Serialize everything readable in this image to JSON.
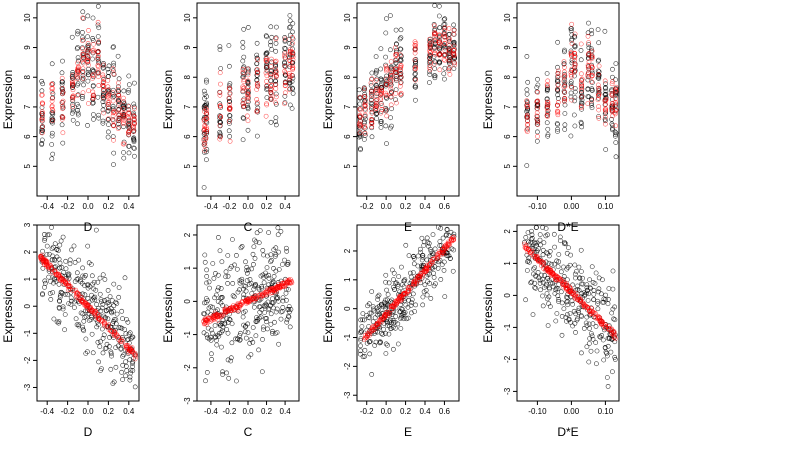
{
  "colors": {
    "observed": "#000000",
    "fitted": "#ff0000",
    "frame": "#000000"
  },
  "chart_data": [
    {
      "type": "scatter",
      "row": "top",
      "xlabel": "D",
      "ylabel": "Expression",
      "xlim": [
        -0.5,
        0.5
      ],
      "ylim": [
        4,
        10.5
      ],
      "xticks": [
        -0.4,
        -0.2,
        0.0,
        0.2,
        0.4
      ],
      "xtick_labels": [
        "-0.4",
        "-0.2",
        "0.0",
        "0.2",
        "0.4"
      ],
      "yticks": [
        5,
        6,
        7,
        8,
        9,
        10
      ],
      "ytick_labels": [
        "5",
        "6",
        "7",
        "8",
        "9",
        "10"
      ],
      "series": [
        {
          "role": "observed",
          "color": "#000000",
          "x_groups": [
            -0.45,
            -0.35,
            -0.25,
            -0.15,
            -0.1,
            -0.05,
            0.0,
            0.05,
            0.1,
            0.15,
            0.2,
            0.25,
            0.3,
            0.35,
            0.4,
            0.45
          ],
          "centers": [
            6.9,
            7.0,
            7.2,
            7.5,
            8.0,
            8.3,
            8.5,
            8.2,
            8.6,
            7.5,
            7.2,
            7.0,
            6.8,
            6.6,
            6.5,
            6.4
          ],
          "spread": [
            1.4,
            1.4,
            1.5,
            1.6,
            1.8,
            1.9,
            1.9,
            1.8,
            1.8,
            1.6,
            1.5,
            1.5,
            1.4,
            1.3,
            1.3,
            1.3
          ]
        },
        {
          "role": "fitted",
          "color": "#ff0000",
          "x_groups": [
            -0.45,
            -0.35,
            -0.25,
            -0.15,
            -0.1,
            -0.05,
            0.0,
            0.05,
            0.1,
            0.15,
            0.2,
            0.25,
            0.3,
            0.35,
            0.4,
            0.45
          ],
          "centers": [
            6.9,
            7.0,
            7.2,
            7.5,
            8.1,
            8.4,
            8.6,
            8.3,
            8.8,
            7.6,
            7.2,
            7.0,
            6.8,
            6.6,
            6.5,
            6.4
          ],
          "spread": [
            0.9,
            0.9,
            1.0,
            1.1,
            1.3,
            1.4,
            1.4,
            1.3,
            1.3,
            1.1,
            1.0,
            1.0,
            0.9,
            0.8,
            0.8,
            0.8
          ]
        }
      ]
    },
    {
      "type": "scatter",
      "row": "top",
      "xlabel": "C",
      "ylabel": "Expression",
      "xlim": [
        -0.55,
        0.55
      ],
      "ylim": [
        4,
        10.5
      ],
      "xticks": [
        -0.4,
        -0.2,
        0.0,
        0.2,
        0.4
      ],
      "xtick_labels": [
        "-0.4",
        "-0.2",
        "0.0",
        "0.2",
        "0.4"
      ],
      "yticks": [
        5,
        6,
        7,
        8,
        9,
        10
      ],
      "ytick_labels": [
        "5",
        "6",
        "7",
        "8",
        "9",
        "10"
      ],
      "series": [
        {
          "role": "observed",
          "color": "#000000",
          "x_groups": [
            -0.47,
            -0.45,
            -0.3,
            -0.2,
            -0.05,
            0.0,
            0.1,
            0.2,
            0.25,
            0.3,
            0.4,
            0.45,
            0.48
          ],
          "centers": [
            6.4,
            6.8,
            7.0,
            7.4,
            7.8,
            7.6,
            7.9,
            8.1,
            8.2,
            8.0,
            8.5,
            8.6,
            8.7
          ],
          "spread": [
            1.6,
            1.7,
            1.5,
            1.4,
            1.5,
            1.4,
            1.4,
            1.5,
            1.4,
            1.5,
            1.7,
            1.8,
            1.7
          ]
        },
        {
          "role": "fitted",
          "color": "#ff0000",
          "x_groups": [
            -0.47,
            -0.45,
            -0.3,
            -0.2,
            -0.05,
            0.0,
            0.1,
            0.2,
            0.25,
            0.3,
            0.4,
            0.45,
            0.48
          ],
          "centers": [
            6.2,
            6.6,
            7.0,
            7.3,
            7.6,
            7.5,
            7.8,
            8.0,
            8.1,
            8.0,
            8.4,
            8.5,
            8.6
          ],
          "spread": [
            0.8,
            0.9,
            1.0,
            1.0,
            1.0,
            1.0,
            1.0,
            1.0,
            1.0,
            1.0,
            1.2,
            1.3,
            1.2
          ]
        }
      ]
    },
    {
      "type": "scatter",
      "row": "top",
      "xlabel": "E",
      "ylabel": "Expression",
      "xlim": [
        -0.3,
        0.75
      ],
      "ylim": [
        4,
        10.5
      ],
      "xticks": [
        -0.2,
        0.0,
        0.2,
        0.4,
        0.6
      ],
      "xtick_labels": [
        "-0.2",
        "0.0",
        "0.2",
        "0.4",
        "0.6"
      ],
      "yticks": [
        5,
        6,
        7,
        8,
        9,
        10
      ],
      "ytick_labels": [
        "5",
        "6",
        "7",
        "8",
        "9",
        "10"
      ],
      "series": [
        {
          "role": "observed",
          "color": "#000000",
          "x_groups": [
            -0.27,
            -0.22,
            -0.15,
            -0.1,
            -0.05,
            0.0,
            0.05,
            0.1,
            0.15,
            0.3,
            0.45,
            0.5,
            0.55,
            0.6,
            0.65,
            0.7
          ],
          "centers": [
            6.8,
            6.9,
            7.1,
            7.3,
            7.6,
            7.8,
            8.1,
            8.4,
            8.7,
            8.5,
            8.8,
            9.0,
            9.2,
            9.1,
            8.9,
            8.7
          ],
          "spread": [
            1.6,
            1.6,
            1.5,
            1.5,
            1.5,
            1.6,
            1.6,
            1.6,
            1.6,
            1.0,
            0.9,
            0.9,
            0.9,
            0.9,
            0.8,
            0.8
          ]
        },
        {
          "role": "fitted",
          "color": "#ff0000",
          "x_groups": [
            -0.27,
            -0.22,
            -0.15,
            -0.1,
            -0.05,
            0.0,
            0.05,
            0.1,
            0.15,
            0.3,
            0.45,
            0.5,
            0.55,
            0.6,
            0.65,
            0.7
          ],
          "centers": [
            6.7,
            6.9,
            7.1,
            7.3,
            7.5,
            7.8,
            8.0,
            8.3,
            8.5,
            8.6,
            8.8,
            9.0,
            9.1,
            9.0,
            8.9,
            8.8
          ],
          "spread": [
            0.9,
            0.9,
            0.9,
            0.9,
            0.9,
            1.0,
            1.0,
            1.0,
            1.0,
            0.8,
            0.7,
            0.7,
            0.7,
            0.7,
            0.7,
            0.7
          ]
        }
      ]
    },
    {
      "type": "scatter",
      "row": "top",
      "xlabel": "D*E",
      "ylabel": "Expression",
      "xlim": [
        -0.16,
        0.14
      ],
      "ylim": [
        4,
        10.5
      ],
      "xticks": [
        -0.1,
        0.0,
        0.1
      ],
      "xtick_labels": [
        "-0.10",
        "0.00",
        "0.10"
      ],
      "yticks": [
        5,
        6,
        7,
        8,
        9,
        10
      ],
      "ytick_labels": [
        "5",
        "6",
        "7",
        "8",
        "9",
        "10"
      ],
      "series": [
        {
          "role": "observed",
          "color": "#000000",
          "x_groups": [
            -0.13,
            -0.1,
            -0.07,
            -0.04,
            -0.02,
            0.0,
            0.01,
            0.03,
            0.05,
            0.06,
            0.08,
            0.1,
            0.12,
            0.13
          ],
          "centers": [
            6.8,
            7.0,
            7.1,
            7.3,
            7.6,
            8.2,
            8.4,
            7.8,
            8.5,
            8.3,
            7.6,
            7.2,
            7.1,
            7.0
          ],
          "spread": [
            1.3,
            1.3,
            1.4,
            1.4,
            1.5,
            2.0,
            2.0,
            1.7,
            1.8,
            1.8,
            1.5,
            1.4,
            1.4,
            1.3
          ]
        },
        {
          "role": "fitted",
          "color": "#ff0000",
          "x_groups": [
            -0.13,
            -0.1,
            -0.07,
            -0.04,
            -0.02,
            0.0,
            0.01,
            0.03,
            0.05,
            0.06,
            0.08,
            0.1,
            0.12,
            0.13
          ],
          "centers": [
            6.7,
            6.9,
            7.1,
            7.3,
            7.6,
            8.3,
            8.5,
            7.8,
            8.6,
            8.3,
            7.6,
            7.2,
            7.1,
            7.0
          ],
          "spread": [
            0.7,
            0.8,
            0.8,
            0.9,
            1.0,
            1.6,
            1.6,
            1.2,
            1.3,
            1.3,
            1.0,
            0.9,
            0.9,
            0.8
          ]
        }
      ]
    },
    {
      "type": "scatter",
      "row": "bottom",
      "xlabel": "D",
      "ylabel": "Expression",
      "xlim": [
        -0.5,
        0.5
      ],
      "ylim": [
        -3.5,
        3.0
      ],
      "xticks": [
        -0.4,
        -0.2,
        0.0,
        0.2,
        0.4
      ],
      "xtick_labels": [
        "-0.4",
        "-0.2",
        "0.0",
        "0.2",
        "0.4"
      ],
      "yticks": [
        -3,
        -2,
        -1,
        0,
        1,
        2,
        3
      ],
      "ytick_labels": [
        "-3",
        "-2",
        "-1",
        "0",
        "1",
        "2",
        "3"
      ],
      "series": [
        {
          "role": "observed",
          "color": "#000000",
          "x_range": [
            -0.47,
            0.47
          ],
          "line": {
            "intercept": 0.0,
            "slope": -3.9
          },
          "noise": 0.8,
          "count": 320
        },
        {
          "role": "fitted",
          "color": "#ff0000",
          "x_range": [
            -0.47,
            0.47
          ],
          "line": {
            "intercept": 0.0,
            "slope": -3.9
          },
          "noise": 0.06,
          "count": 220
        }
      ]
    },
    {
      "type": "scatter",
      "row": "bottom",
      "xlabel": "C",
      "ylabel": "Expression",
      "xlim": [
        -0.55,
        0.55
      ],
      "ylim": [
        -3.0,
        2.3
      ],
      "xticks": [
        -0.4,
        -0.2,
        0.0,
        0.2,
        0.4
      ],
      "xtick_labels": [
        "-0.4",
        "-0.2",
        "0.0",
        "0.2",
        "0.4"
      ],
      "yticks": [
        -3,
        -2,
        -1,
        0,
        1,
        2
      ],
      "ytick_labels": [
        "-3",
        "-2",
        "-1",
        "0",
        "1",
        "2"
      ],
      "series": [
        {
          "role": "observed",
          "color": "#000000",
          "x_range": [
            -0.48,
            0.48
          ],
          "line": {
            "intercept": 0.0,
            "slope": 1.3
          },
          "noise": 0.9,
          "count": 320
        },
        {
          "role": "fitted",
          "color": "#ff0000",
          "x_range": [
            -0.48,
            0.48
          ],
          "line": {
            "intercept": 0.0,
            "slope": 1.3
          },
          "noise": 0.05,
          "count": 220
        }
      ]
    },
    {
      "type": "scatter",
      "row": "bottom",
      "xlabel": "E",
      "ylabel": "Expression",
      "xlim": [
        -0.3,
        0.75
      ],
      "ylim": [
        -3.2,
        2.9
      ],
      "xticks": [
        -0.2,
        0.0,
        0.2,
        0.4,
        0.6
      ],
      "xtick_labels": [
        "-0.2",
        "0.0",
        "0.2",
        "0.4",
        "0.6"
      ],
      "yticks": [
        -3,
        -2,
        -1,
        0,
        1,
        2
      ],
      "ytick_labels": [
        "-3",
        "-2",
        "-1",
        "0",
        "1",
        "2"
      ],
      "series": [
        {
          "role": "observed",
          "color": "#000000",
          "x_range": [
            -0.27,
            0.7
          ],
          "line": {
            "intercept": -0.2,
            "slope": 3.8
          },
          "noise": 0.6,
          "count": 320
        },
        {
          "role": "fitted",
          "color": "#ff0000",
          "x_range": [
            -0.27,
            0.7
          ],
          "line": {
            "intercept": -0.2,
            "slope": 3.8
          },
          "noise": 0.05,
          "count": 220
        }
      ]
    },
    {
      "type": "scatter",
      "row": "bottom",
      "xlabel": "D*E",
      "ylabel": "Expression",
      "xlim": [
        -0.16,
        0.14
      ],
      "ylim": [
        -3.3,
        2.2
      ],
      "xticks": [
        -0.1,
        0.0,
        0.1
      ],
      "xtick_labels": [
        "-0.10",
        "0.00",
        "0.10"
      ],
      "yticks": [
        -3,
        -2,
        -1,
        0,
        1,
        2
      ],
      "ytick_labels": [
        "-3",
        "-2",
        "-1",
        "0",
        "1",
        "2"
      ],
      "series": [
        {
          "role": "observed",
          "color": "#000000",
          "x_range": [
            -0.14,
            0.13
          ],
          "line": {
            "intercept": 0.1,
            "slope": -10.5
          },
          "noise": 0.7,
          "count": 320
        },
        {
          "role": "fitted",
          "color": "#ff0000",
          "x_range": [
            -0.14,
            0.13
          ],
          "line": {
            "intercept": 0.1,
            "slope": -10.5
          },
          "noise": 0.05,
          "count": 220
        }
      ]
    }
  ]
}
